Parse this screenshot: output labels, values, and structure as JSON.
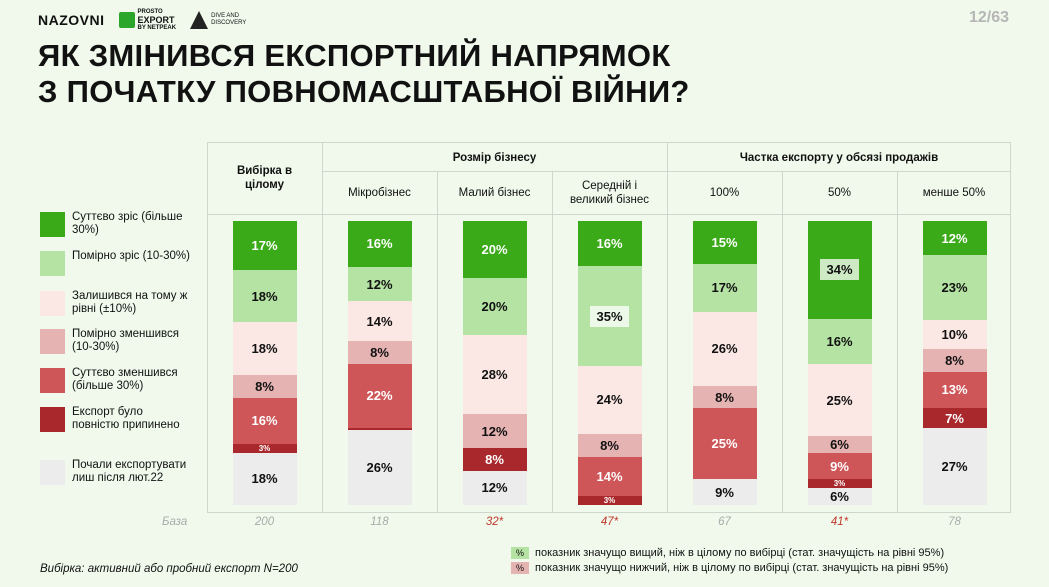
{
  "logos": {
    "nazovni": "NAZOVNI",
    "export_top": "PROSTO",
    "export_main": "EXPORT",
    "export_sub": "BY NETPEAK",
    "dive_top": "DIVE AND",
    "dive_main": "DISCOVERY"
  },
  "page_number": "12/63",
  "title_line1": "Як змінився експортний напрямок",
  "title_line2": "з початку повномасштабної війни?",
  "colors": {
    "strong_growth": "#3aaa18",
    "moderate_growth": "#b5e3a3",
    "same": "#fbe8e5",
    "moderate_decline": "#e5b3b2",
    "strong_decline": "#ce5658",
    "stopped": "#a8282c",
    "started": "#ececec"
  },
  "headers": {
    "overall": "Вибірка в цілому",
    "group_size": "Розмір бізнесу",
    "group_share": "Частка експорту у обсязі продажів",
    "micro": "Мікробізнес",
    "small": "Малий бізнес",
    "medium": "Середній і великий бізнес",
    "s100": "100%",
    "s50": "50%",
    "sless": "менше 50%"
  },
  "legend": [
    {
      "key": "strong_growth",
      "label": "Суттєво зріс (більше 30%)"
    },
    {
      "key": "moderate_growth",
      "label": "Помірно зріс (10-30%)"
    },
    {
      "key": "same",
      "label": "Залишився на тому ж рівні (±10%)"
    },
    {
      "key": "moderate_decline",
      "label": "Помірно зменшився (10-30%)"
    },
    {
      "key": "strong_decline",
      "label": "Суттєво зменшився (більше 30%)"
    },
    {
      "key": "stopped",
      "label": "Експорт було повністю припинено"
    },
    {
      "key": "started",
      "label": "Почали експортувати лиш після лют.22"
    }
  ],
  "base": {
    "label": "База",
    "values": [
      "200",
      "118",
      "32*",
      "47*",
      "67",
      "41*",
      "78"
    ],
    "low": [
      false,
      false,
      true,
      true,
      false,
      true,
      false
    ]
  },
  "chart_data": {
    "type": "bar",
    "stacked": true,
    "unit": "%",
    "categories": [
      "Вибірка в цілому",
      "Мікробізнес",
      "Малий бізнес",
      "Середній і великий бізнес",
      "100%",
      "50%",
      "менше 50%"
    ],
    "series": [
      {
        "name": "Суттєво зріс (більше 30%)",
        "key": "strong_growth",
        "values": [
          17,
          16,
          20,
          16,
          15,
          34,
          12
        ]
      },
      {
        "name": "Помірно зріс (10-30%)",
        "key": "moderate_growth",
        "values": [
          18,
          12,
          20,
          35,
          17,
          16,
          23
        ]
      },
      {
        "name": "Залишився на тому ж рівні (±10%)",
        "key": "same",
        "values": [
          18,
          14,
          28,
          24,
          26,
          25,
          10
        ]
      },
      {
        "name": "Помірно зменшився (10-30%)",
        "key": "moderate_decline",
        "values": [
          8,
          8,
          12,
          8,
          8,
          6,
          8
        ]
      },
      {
        "name": "Суттєво зменшився (більше 30%)",
        "key": "strong_decline",
        "values": [
          16,
          22,
          0,
          14,
          25,
          9,
          13
        ]
      },
      {
        "name": "Експорт було повністю припинено",
        "key": "stopped",
        "values": [
          3,
          1,
          8,
          3,
          0,
          3,
          7
        ]
      },
      {
        "name": "Почали експортувати лиш після лют.22",
        "key": "started",
        "values": [
          18,
          26,
          12,
          0,
          9,
          6,
          27
        ]
      }
    ],
    "hidden_labels": [
      [],
      [
        5
      ],
      [
        4
      ],
      [
        6
      ],
      [
        5
      ],
      [],
      []
    ],
    "significant_higher": [
      [],
      [],
      [],
      [
        1
      ],
      [],
      [
        0
      ],
      []
    ]
  },
  "footer": {
    "sample": "Вибірка: активний або пробний експорт N=200",
    "higher_chip": "%",
    "higher_note": "показник значущо вищий, ніж в цілому по вибірці (стат. значущість на рівні 95%)",
    "lower_chip": "%",
    "lower_note": "показник значущо нижчий, ніж в цілому по вибірці (стат. значущість на рівні 95%)"
  }
}
